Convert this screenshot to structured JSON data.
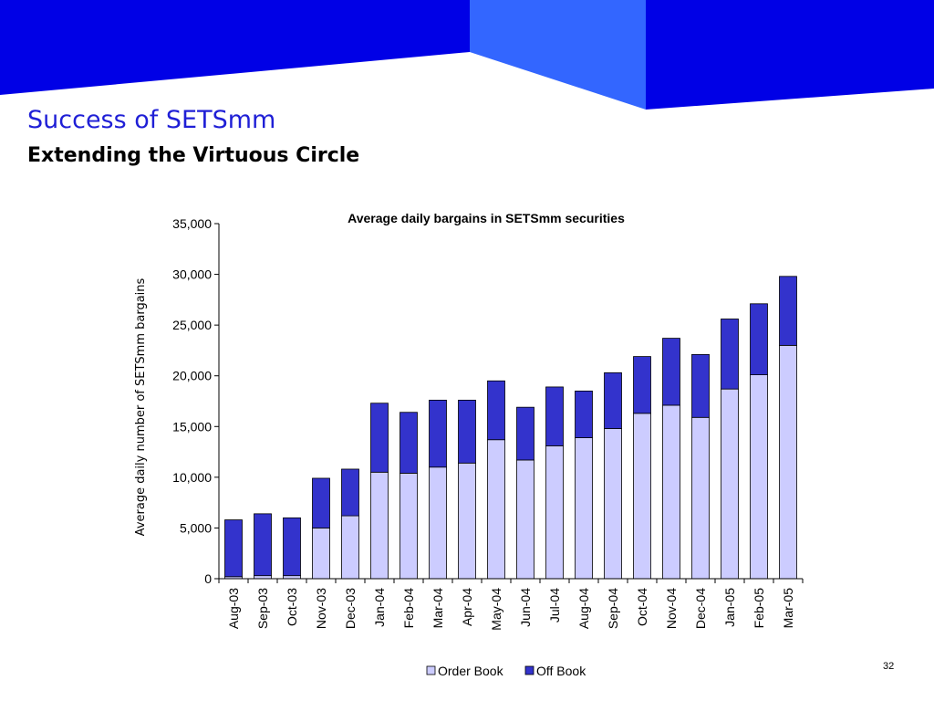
{
  "slide": {
    "title": "Success of SETSmm",
    "subtitle": "Extending the Virtuous Circle",
    "page_number": "32"
  },
  "colors": {
    "banner_dark": "#0000e6",
    "banner_light": "#3366ff",
    "title_blue": "#1f1fd6",
    "order_book": "#ccccff",
    "off_book": "#3333cc"
  },
  "chart_data": {
    "type": "bar",
    "stacked": true,
    "title": "Average daily bargains in SETSmm securities",
    "xlabel": "",
    "ylabel": "Average daily number of SETSmm bargains",
    "ylim": [
      0,
      35000
    ],
    "yticks": [
      0,
      5000,
      10000,
      15000,
      20000,
      25000,
      30000,
      35000
    ],
    "ytick_labels": [
      "0",
      "5,000",
      "10,000",
      "15,000",
      "20,000",
      "25,000",
      "30,000",
      "35,000"
    ],
    "grid": false,
    "legend": "bottom",
    "categories": [
      "Aug-03",
      "Sep-03",
      "Oct-03",
      "Nov-03",
      "Dec-03",
      "Jan-04",
      "Feb-04",
      "Mar-04",
      "Apr-04",
      "May-04",
      "Jun-04",
      "Jul-04",
      "Aug-04",
      "Sep-04",
      "Oct-04",
      "Nov-04",
      "Dec-04",
      "Jan-05",
      "Feb-05",
      "Mar-05"
    ],
    "series": [
      {
        "name": "Order Book",
        "color": "#ccccff",
        "values": [
          200,
          300,
          300,
          5000,
          6200,
          10500,
          10400,
          11000,
          11400,
          13700,
          11700,
          13100,
          13900,
          14800,
          16300,
          17100,
          15900,
          18700,
          20100,
          23000
        ]
      },
      {
        "name": "Off Book",
        "color": "#3333cc",
        "values": [
          5600,
          6100,
          5700,
          4900,
          4600,
          6800,
          6000,
          6600,
          6200,
          5800,
          5200,
          5800,
          4600,
          5500,
          5600,
          6600,
          6200,
          6900,
          7000,
          6800
        ]
      }
    ]
  }
}
